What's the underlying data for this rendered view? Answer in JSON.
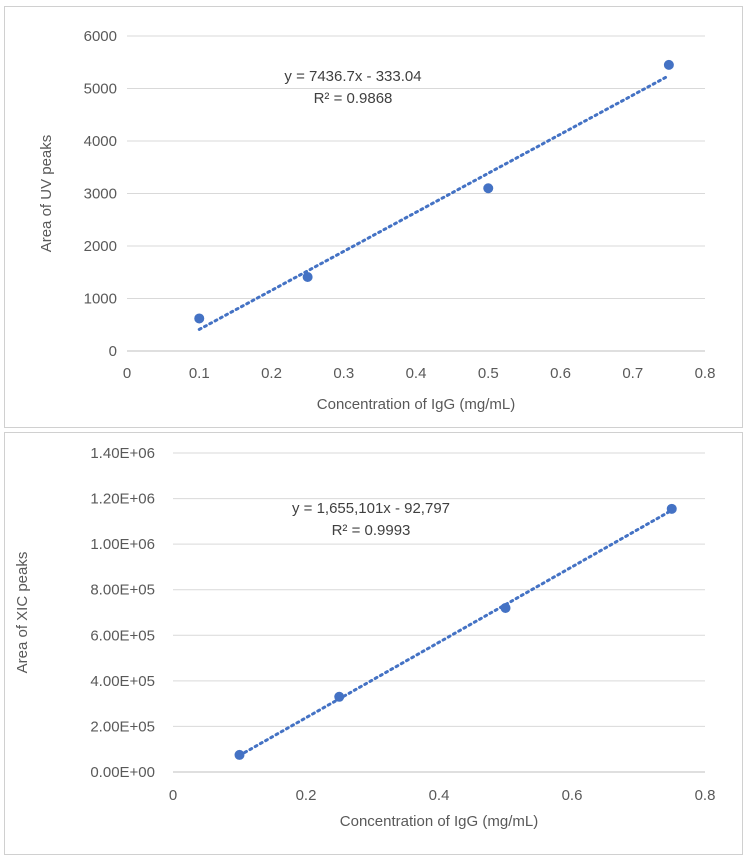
{
  "chart_data": [
    {
      "type": "scatter",
      "title": "",
      "xlabel": "Concentration of IgG (mg/mL)",
      "ylabel": "Area of UV peaks",
      "xlim": [
        0,
        0.8
      ],
      "ylim": [
        0,
        6000
      ],
      "x_ticks": [
        0,
        0.1,
        0.2,
        0.3,
        0.4,
        0.5,
        0.6,
        0.7,
        0.8
      ],
      "x_tick_labels": [
        "0",
        "0.1",
        "0.2",
        "0.3",
        "0.4",
        "0.5",
        "0.6",
        "0.7",
        "0.8"
      ],
      "y_ticks": [
        0,
        1000,
        2000,
        3000,
        4000,
        5000,
        6000
      ],
      "y_tick_labels": [
        "0",
        "1000",
        "2000",
        "3000",
        "4000",
        "5000",
        "6000"
      ],
      "grid": true,
      "x": [
        0.1,
        0.25,
        0.5,
        0.75
      ],
      "y": [
        620,
        1410,
        3100,
        5450
      ],
      "trendline": {
        "type": "linear",
        "slope": 7436.7,
        "intercept": -333.04,
        "x_range": [
          0.1,
          0.75
        ]
      },
      "equation_lines": [
        "y = 7436.7x - 333.04",
        "R² = 0.9868"
      ],
      "marker_color": "#4472c4",
      "trend_color": "#4472c4"
    },
    {
      "type": "scatter",
      "title": "",
      "xlabel": "Concentration of IgG (mg/mL)",
      "ylabel": "Area of XIC peaks",
      "xlim": [
        0,
        0.8
      ],
      "ylim": [
        0,
        1400000
      ],
      "x_ticks": [
        0,
        0.2,
        0.4,
        0.6,
        0.8
      ],
      "x_tick_labels": [
        "0",
        "0.2",
        "0.4",
        "0.6",
        "0.8"
      ],
      "y_ticks": [
        0,
        200000,
        400000,
        600000,
        800000,
        1000000,
        1200000,
        1400000
      ],
      "y_tick_labels": [
        "0.00E+00",
        "2.00E+05",
        "4.00E+05",
        "6.00E+05",
        "8.00E+05",
        "1.00E+06",
        "1.20E+06",
        "1.40E+06"
      ],
      "grid": true,
      "x": [
        0.1,
        0.25,
        0.5,
        0.75
      ],
      "y": [
        75000,
        330000,
        720000,
        1155000
      ],
      "trendline": {
        "type": "linear",
        "slope": 1655101,
        "intercept": -92797,
        "x_range": [
          0.1,
          0.75
        ]
      },
      "equation_lines": [
        "y = 1,655,101x - 92,797",
        "R² = 0.9993"
      ],
      "marker_color": "#4472c4",
      "trend_color": "#4472c4"
    }
  ]
}
